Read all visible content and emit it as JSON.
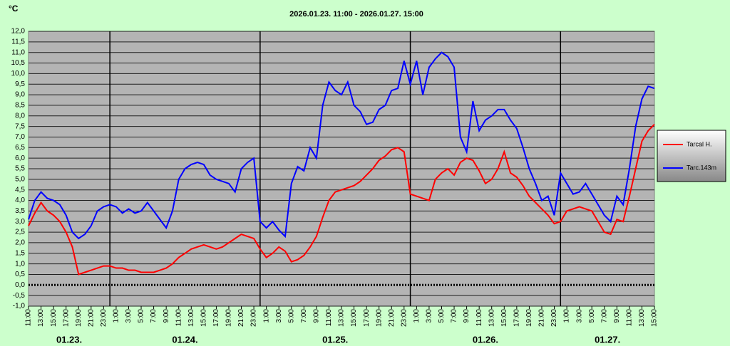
{
  "chart_data": {
    "type": "line",
    "title": "2026.01.23. 11:00 - 2026.01.27. 15:00",
    "unit": "°C",
    "x": [
      0,
      1,
      2,
      3,
      4,
      5,
      6,
      7,
      8,
      9,
      10,
      11,
      12,
      13,
      14,
      15,
      16,
      17,
      18,
      19,
      20,
      21,
      22,
      23,
      24,
      25,
      26,
      27,
      28,
      29,
      30,
      31,
      32,
      33,
      34,
      35,
      36,
      37,
      38,
      39,
      40,
      41,
      42,
      43,
      44,
      45,
      46,
      47,
      48,
      49,
      50,
      51,
      52,
      53,
      54,
      55,
      56,
      57,
      58,
      59,
      60,
      61,
      62,
      63,
      64,
      65,
      66,
      67,
      68,
      69,
      70,
      71,
      72,
      73,
      74,
      75,
      76,
      77,
      78,
      79,
      80,
      81,
      82,
      83,
      84,
      85,
      86,
      87,
      88,
      89,
      90,
      91,
      92,
      93,
      94,
      95,
      96,
      97,
      98,
      99,
      100
    ],
    "series": [
      {
        "name": "Tarcal H.",
        "color": "#ff0000",
        "values": [
          2.8,
          3.4,
          3.9,
          3.5,
          3.3,
          3.0,
          2.5,
          1.8,
          0.5,
          0.6,
          0.7,
          0.8,
          0.9,
          0.9,
          0.8,
          0.8,
          0.7,
          0.7,
          0.6,
          0.6,
          0.6,
          0.7,
          0.8,
          1.0,
          1.3,
          1.5,
          1.7,
          1.8,
          1.9,
          1.8,
          1.7,
          1.8,
          2.0,
          2.2,
          2.4,
          2.3,
          2.2,
          1.7,
          1.3,
          1.5,
          1.8,
          1.6,
          1.1,
          1.2,
          1.4,
          1.8,
          2.3,
          3.2,
          4.0,
          4.4,
          4.5,
          4.6,
          4.7,
          4.9,
          5.2,
          5.5,
          5.9,
          6.1,
          6.4,
          6.5,
          6.3,
          4.3,
          4.2,
          4.1,
          4.0,
          5.0,
          5.3,
          5.5,
          5.2,
          5.8,
          6.0,
          5.9,
          5.4,
          4.8,
          5.0,
          5.5,
          6.3,
          5.3,
          5.1,
          4.7,
          4.2,
          3.9,
          3.6,
          3.3,
          2.9,
          3.0,
          3.5,
          3.6,
          3.7,
          3.6,
          3.5,
          3.0,
          2.5,
          2.4,
          3.1,
          3.0,
          4.2,
          5.5,
          6.8,
          7.3,
          7.6
        ]
      },
      {
        "name": "Tarc.143m",
        "color": "#0000ff",
        "values": [
          3.1,
          4.0,
          4.4,
          4.1,
          4.0,
          3.8,
          3.3,
          2.5,
          2.2,
          2.4,
          2.8,
          3.5,
          3.7,
          3.8,
          3.7,
          3.4,
          3.6,
          3.4,
          3.5,
          3.9,
          3.5,
          3.1,
          2.7,
          3.5,
          5.0,
          5.5,
          5.7,
          5.8,
          5.7,
          5.2,
          5.0,
          4.9,
          4.8,
          4.4,
          5.5,
          5.8,
          6.0,
          3.0,
          2.7,
          3.0,
          2.6,
          2.3,
          4.8,
          5.6,
          5.4,
          6.5,
          6.0,
          8.5,
          9.6,
          9.2,
          9.0,
          9.6,
          8.5,
          8.2,
          7.6,
          7.7,
          8.3,
          8.5,
          9.2,
          9.3,
          10.6,
          9.5,
          10.6,
          9.0,
          10.3,
          10.7,
          11.0,
          10.8,
          10.3,
          7.0,
          6.3,
          8.7,
          7.3,
          7.8,
          8.0,
          8.3,
          8.3,
          7.8,
          7.4,
          6.5,
          5.5,
          4.8,
          4.0,
          4.2,
          3.3,
          5.3,
          4.8,
          4.3,
          4.4,
          4.8,
          4.3,
          3.8,
          3.3,
          3.0,
          4.2,
          3.8,
          5.5,
          7.5,
          8.8,
          9.4,
          9.3
        ]
      }
    ],
    "xlim": [
      0,
      100
    ],
    "xticks": [
      {
        "value": 0,
        "label": "11:00"
      },
      {
        "value": 2,
        "label": "13:00"
      },
      {
        "value": 4,
        "label": "15:00"
      },
      {
        "value": 6,
        "label": "17:00"
      },
      {
        "value": 8,
        "label": "19:00"
      },
      {
        "value": 10,
        "label": "21:00"
      },
      {
        "value": 12,
        "label": "23:00"
      },
      {
        "value": 14,
        "label": "1:00"
      },
      {
        "value": 16,
        "label": "3:00"
      },
      {
        "value": 18,
        "label": "5:00"
      },
      {
        "value": 20,
        "label": "7:00"
      },
      {
        "value": 22,
        "label": "9:00"
      },
      {
        "value": 24,
        "label": "11:00"
      },
      {
        "value": 26,
        "label": "13:00"
      },
      {
        "value": 28,
        "label": "15:00"
      },
      {
        "value": 30,
        "label": "17:00"
      },
      {
        "value": 32,
        "label": "19:00"
      },
      {
        "value": 34,
        "label": "21:00"
      },
      {
        "value": 36,
        "label": "23:00"
      },
      {
        "value": 38,
        "label": "1:00"
      },
      {
        "value": 40,
        "label": "3:00"
      },
      {
        "value": 42,
        "label": "5:00"
      },
      {
        "value": 44,
        "label": "7:00"
      },
      {
        "value": 46,
        "label": "9:00"
      },
      {
        "value": 48,
        "label": "11:00"
      },
      {
        "value": 50,
        "label": "13:00"
      },
      {
        "value": 52,
        "label": "15:00"
      },
      {
        "value": 54,
        "label": "17:00"
      },
      {
        "value": 56,
        "label": "19:00"
      },
      {
        "value": 58,
        "label": "21:00"
      },
      {
        "value": 60,
        "label": "23:00"
      },
      {
        "value": 62,
        "label": "1:00"
      },
      {
        "value": 64,
        "label": "3:00"
      },
      {
        "value": 66,
        "label": "5:00"
      },
      {
        "value": 68,
        "label": "7:00"
      },
      {
        "value": 70,
        "label": "9:00"
      },
      {
        "value": 72,
        "label": "11:00"
      },
      {
        "value": 74,
        "label": "13:00"
      },
      {
        "value": 76,
        "label": "15:00"
      },
      {
        "value": 78,
        "label": "17:00"
      },
      {
        "value": 80,
        "label": "19:00"
      },
      {
        "value": 82,
        "label": "21:00"
      },
      {
        "value": 84,
        "label": "23:00"
      },
      {
        "value": 86,
        "label": "1:00"
      },
      {
        "value": 88,
        "label": "3:00"
      },
      {
        "value": 90,
        "label": "5:00"
      },
      {
        "value": 92,
        "label": "7:00"
      },
      {
        "value": 94,
        "label": "9:00"
      },
      {
        "value": 96,
        "label": "11:00"
      },
      {
        "value": 98,
        "label": "13:00"
      },
      {
        "value": 100,
        "label": "15:00"
      }
    ],
    "ylim": [
      -1,
      12
    ],
    "yticks": [
      {
        "value": 12,
        "label": "12,0"
      },
      {
        "value": 11.5,
        "label": "11,5"
      },
      {
        "value": 11,
        "label": "11,0"
      },
      {
        "value": 10.5,
        "label": "10,5"
      },
      {
        "value": 10,
        "label": "10,0"
      },
      {
        "value": 9.5,
        "label": "9,5"
      },
      {
        "value": 9,
        "label": "9,0"
      },
      {
        "value": 8.5,
        "label": "8,5"
      },
      {
        "value": 8,
        "label": "8,0"
      },
      {
        "value": 7.5,
        "label": "7,5"
      },
      {
        "value": 7,
        "label": "7,0"
      },
      {
        "value": 6.5,
        "label": "6,5"
      },
      {
        "value": 6,
        "label": "6,0"
      },
      {
        "value": 5.5,
        "label": "5,5"
      },
      {
        "value": 5,
        "label": "5,0"
      },
      {
        "value": 4.5,
        "label": "4,5"
      },
      {
        "value": 4,
        "label": "4,0"
      },
      {
        "value": 3.5,
        "label": "3,5"
      },
      {
        "value": 3,
        "label": "3,0"
      },
      {
        "value": 2.5,
        "label": "2,5"
      },
      {
        "value": 2,
        "label": "2,0"
      },
      {
        "value": 1.5,
        "label": "1,5"
      },
      {
        "value": 1,
        "label": "1,0"
      },
      {
        "value": 0.5,
        "label": "0,5"
      },
      {
        "value": 0,
        "label": "0,0"
      },
      {
        "value": -0.5,
        "label": "-0,5"
      },
      {
        "value": -1,
        "label": "-1,0"
      }
    ],
    "day_lines": [
      13,
      37,
      61,
      85
    ],
    "day_labels": [
      "01.23.",
      "01.24.",
      "01.25.",
      "01.26.",
      "01.27."
    ],
    "grid": true,
    "legend": "right"
  }
}
